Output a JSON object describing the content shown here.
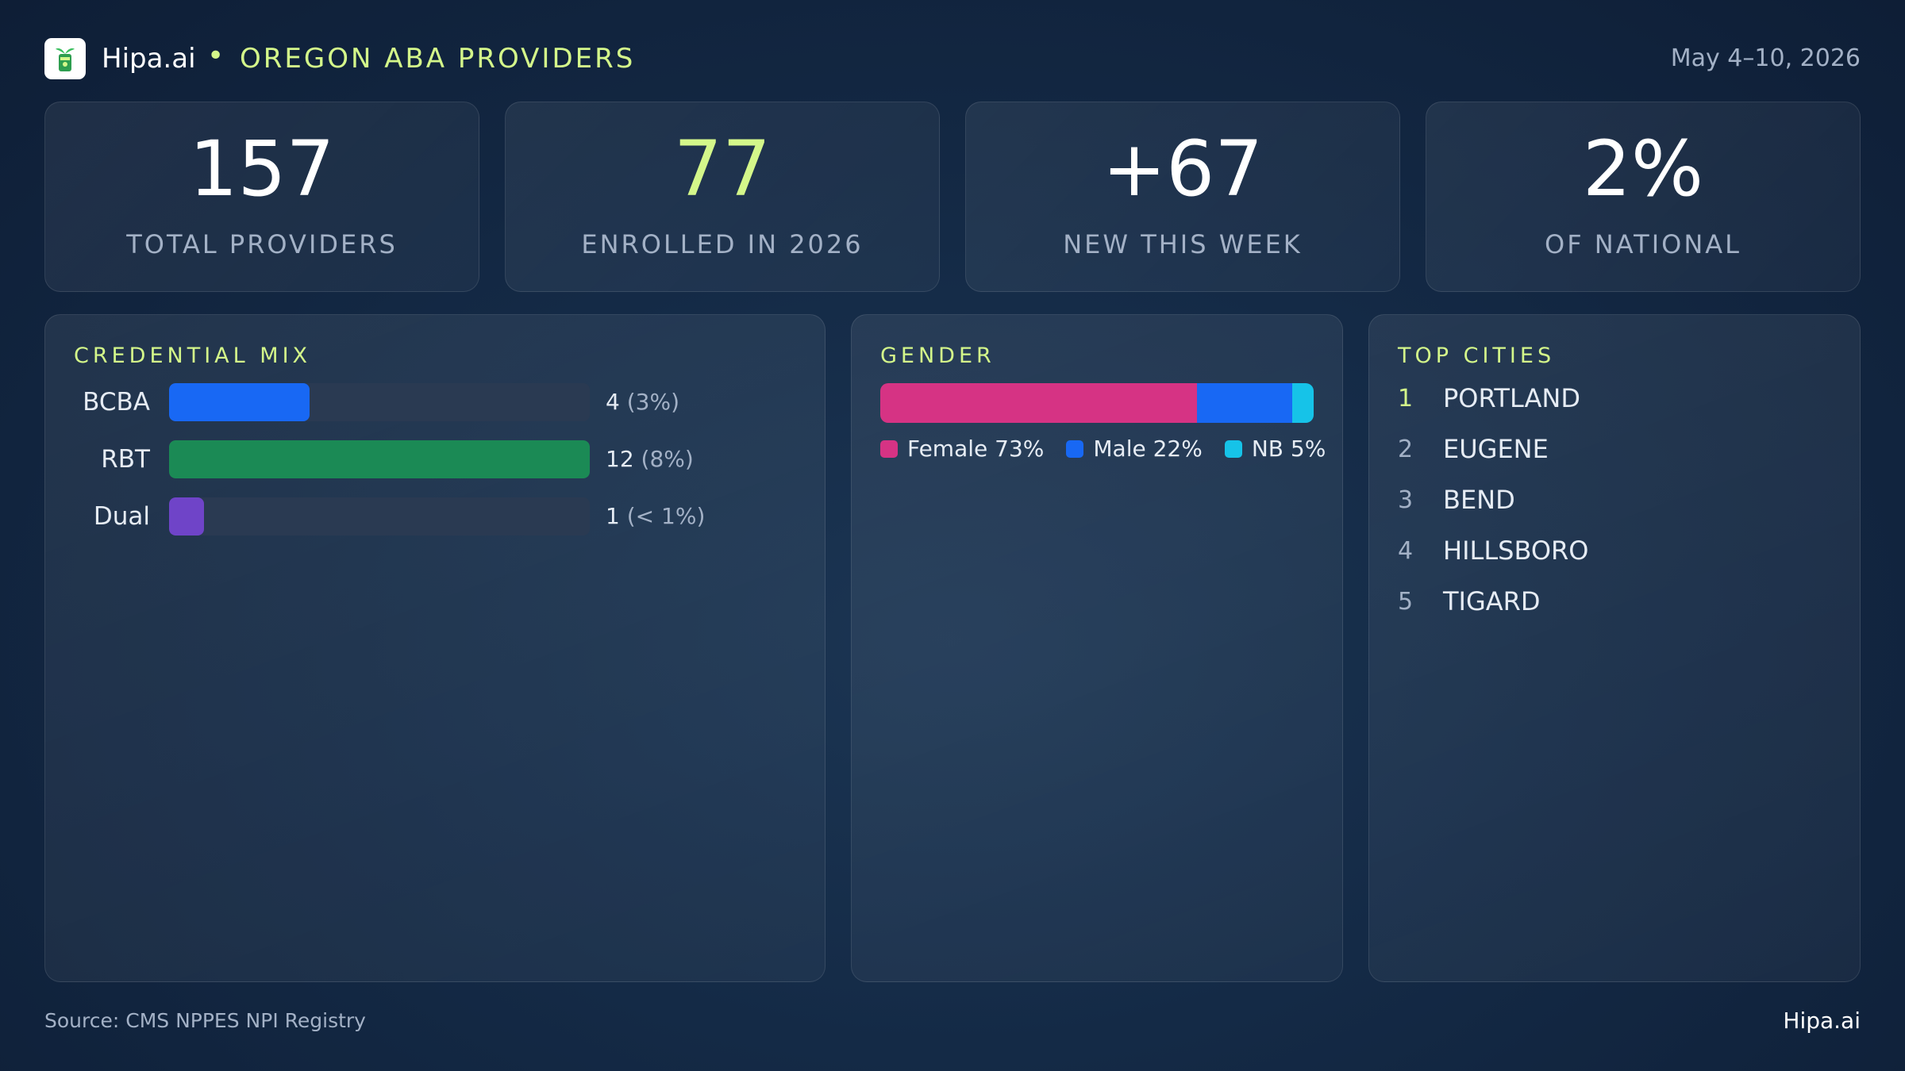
{
  "header": {
    "brand": "Hipa.ai",
    "separator": "•",
    "title": "OREGON ABA PROVIDERS",
    "date_range": "May 4–10, 2026",
    "logo_icon": "leaf-cup-icon"
  },
  "kpis": [
    {
      "value": "157",
      "label": "TOTAL PROVIDERS"
    },
    {
      "value": "77",
      "label": "ENROLLED IN 2026"
    },
    {
      "value": "+67",
      "label": "NEW THIS WEEK"
    },
    {
      "value": "2%",
      "label": "OF NATIONAL"
    }
  ],
  "chart_data": [
    {
      "type": "bar",
      "orientation": "horizontal",
      "title": "CREDENTIAL MIX",
      "categories": [
        "BCBA",
        "RBT",
        "Dual"
      ],
      "values": [
        4,
        12,
        1
      ],
      "value_labels": [
        "4",
        "12",
        "1"
      ],
      "pct_labels": [
        "(3%)",
        "(8%)",
        "(< 1%)"
      ],
      "xlim": [
        0,
        12
      ],
      "colors": [
        "#1868f4",
        "#1b8a55",
        "#6f44c8"
      ]
    },
    {
      "type": "bar",
      "orientation": "stacked-horizontal",
      "title": "GENDER",
      "categories": [
        "Female",
        "Male",
        "NB"
      ],
      "values": [
        73,
        22,
        5
      ],
      "legend_labels": [
        "Female 73%",
        "Male 22%",
        "NB 5%"
      ],
      "colors": [
        "#d63384",
        "#1868f4",
        "#16c3e8"
      ],
      "legend": "bottom"
    }
  ],
  "top_cities": {
    "title": "TOP CITIES",
    "items": [
      {
        "rank": "1",
        "name": "PORTLAND"
      },
      {
        "rank": "2",
        "name": "EUGENE"
      },
      {
        "rank": "3",
        "name": "BEND"
      },
      {
        "rank": "4",
        "name": "HILLSBORO"
      },
      {
        "rank": "5",
        "name": "TIGARD"
      }
    ]
  },
  "footer": {
    "source": "Source: CMS NPPES NPI Registry",
    "brand": "Hipa.ai"
  }
}
